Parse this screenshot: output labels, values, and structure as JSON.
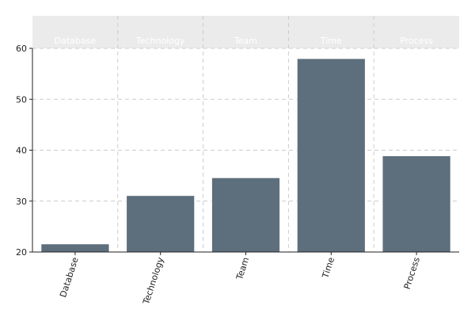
{
  "chart_data": {
    "type": "bar",
    "categories": [
      "Database",
      "Technology",
      "Team",
      "Time",
      "Process"
    ],
    "values": [
      21.6,
      31.1,
      34.6,
      58.0,
      38.9
    ],
    "ylim": [
      20,
      60
    ],
    "yticks": [
      20,
      30,
      40,
      50,
      60
    ],
    "grid": true,
    "facet_strip": true,
    "colors": {
      "bar": "#5d6f7d",
      "bar_outline": "#ffffff",
      "strip": "#ebebeb",
      "grid": "#cccccc",
      "axis": "#222222"
    }
  }
}
